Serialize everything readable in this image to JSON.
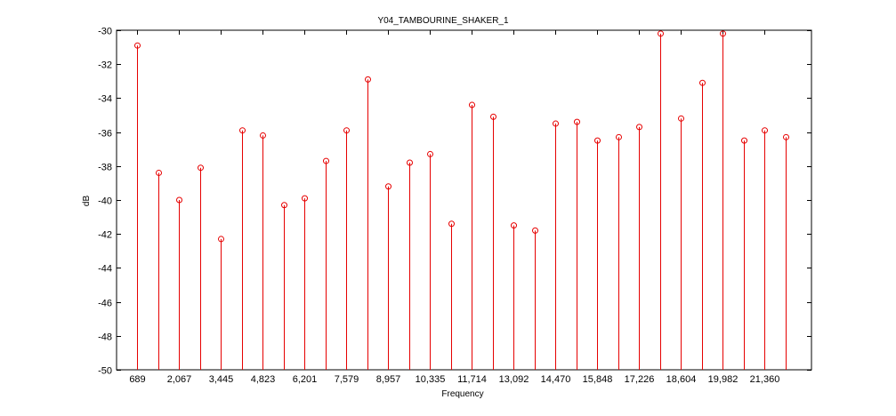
{
  "chart_data": {
    "type": "stem",
    "title": "Y04_TAMBOURINE_SHAKER_1",
    "xlabel": "Frequency",
    "ylabel": "dB",
    "ylim": [
      -50,
      -30
    ],
    "yticks": [
      -50,
      -48,
      -46,
      -44,
      -42,
      -40,
      -38,
      -36,
      -34,
      -32,
      -30
    ],
    "ytick_labels": [
      "-50",
      "-48",
      "-46",
      "-44",
      "-42",
      "-40",
      "-38",
      "-36",
      "-34",
      "-32",
      "-30"
    ],
    "xtick_labels": [
      "689",
      "2,067",
      "3,445",
      "4,823",
      "6,201",
      "7,579",
      "8,957",
      "10,335",
      "11,714",
      "13,092",
      "14,470",
      "15,848",
      "17,226",
      "18,604",
      "19,982",
      "21,360"
    ],
    "grid": false,
    "color": "#e60000",
    "series": [
      {
        "values": [
          -30.9,
          -38.4,
          -40.0,
          -38.1,
          -42.3,
          -35.9,
          -36.2,
          -40.3,
          -39.9,
          -37.7,
          -35.9,
          -32.9,
          -39.2,
          -37.8,
          -37.3,
          -41.4,
          -34.4,
          -35.1,
          -41.5,
          -41.8,
          -35.5,
          -35.4,
          -36.5,
          -36.3,
          -35.7,
          -30.2,
          -35.2,
          -33.1,
          -30.2,
          -36.5,
          -35.9,
          -36.3
        ]
      }
    ]
  }
}
